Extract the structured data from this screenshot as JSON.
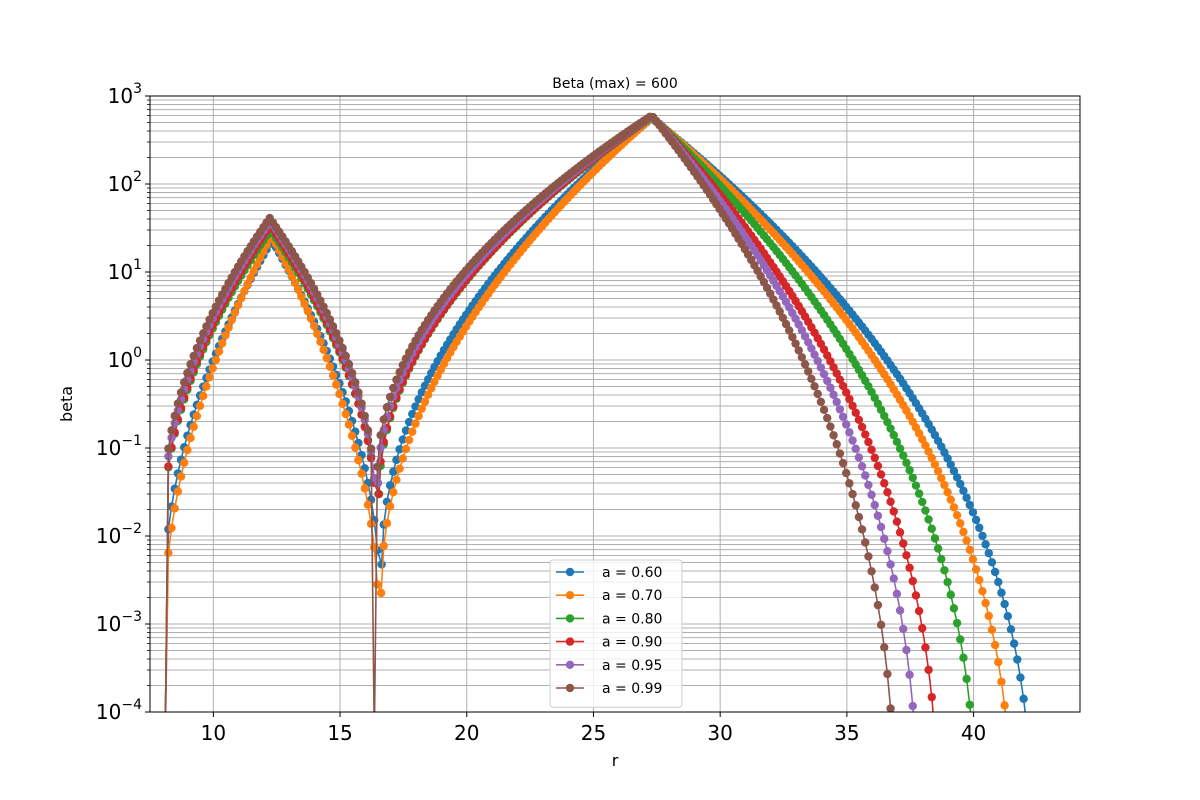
{
  "chart_data": {
    "type": "line",
    "title": "Beta (max) = 600",
    "xlabel": "r",
    "ylabel": "beta",
    "xlim": [
      7.5,
      44.2
    ],
    "ylim": [
      0.0001,
      1000
    ],
    "yscale": "log",
    "grid": "on (major and minor)",
    "legend_position": "lower center",
    "x_ticks": [
      "10",
      "15",
      "20",
      "25",
      "30",
      "35",
      "40"
    ],
    "y_ticks": [
      {
        "base": "10",
        "exp": "−4"
      },
      {
        "base": "10",
        "exp": "−3"
      },
      {
        "base": "10",
        "exp": "−2"
      },
      {
        "base": "10",
        "exp": "−1"
      },
      {
        "base": "10",
        "exp": "0"
      },
      {
        "base": "10",
        "exp": "1"
      },
      {
        "base": "10",
        "exp": "2"
      },
      {
        "base": "10",
        "exp": "3"
      }
    ],
    "peak1_center": 12.9,
    "peak2_center": 27.3,
    "series": [
      {
        "name": "a = 0.60",
        "color": "#1f77b4",
        "r_min": 8.1,
        "r_zero1": 16.52,
        "r_max": 42.3,
        "peak1": 23,
        "peak2": 560,
        "dip": 0.0095
      },
      {
        "name": "a = 0.70",
        "color": "#ff7f0e",
        "r_min": 8.1,
        "r_zero1": 16.5,
        "r_max": 41.5,
        "peak1": 26,
        "peak2": 570,
        "dip": 0.0045
      },
      {
        "name": "a = 0.80",
        "color": "#2ca02c",
        "r_min": 8.1,
        "r_zero1": 16.42,
        "r_max": 40.1,
        "peak1": 30,
        "peak2": 580,
        "dip": 0.06
      },
      {
        "name": "a = 0.90",
        "color": "#d62728",
        "r_min": 8.1,
        "r_zero1": 16.4,
        "r_max": 38.6,
        "peak1": 34,
        "peak2": 590,
        "dip": 0.06
      },
      {
        "name": "a = 0.95",
        "color": "#9467bd",
        "r_min": 8.1,
        "r_zero1": 16.38,
        "r_max": 37.8,
        "peak1": 38,
        "peak2": 595,
        "dip": 0.08
      },
      {
        "name": "a = 0.99",
        "color": "#8c564b",
        "r_min": 8.1,
        "r_zero1": 16.35,
        "r_max": 36.9,
        "peak1": 41,
        "peak2": 600,
        "dip": 0.1
      }
    ]
  }
}
